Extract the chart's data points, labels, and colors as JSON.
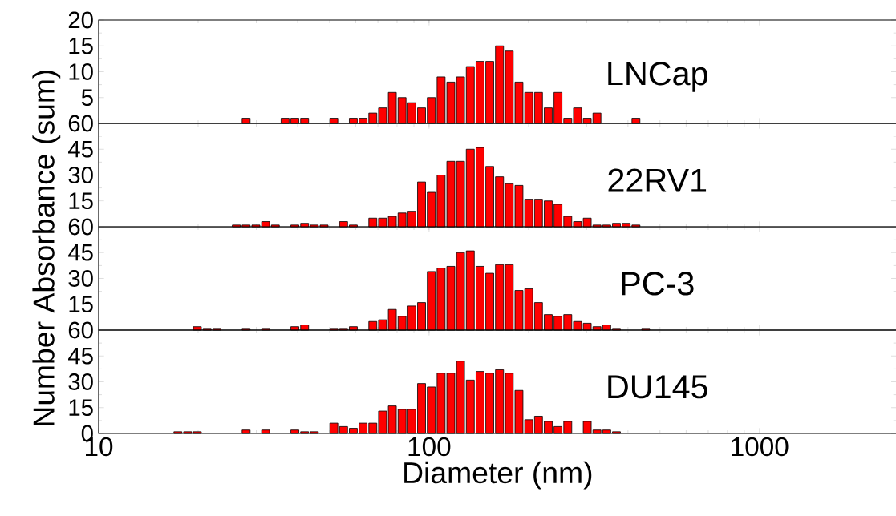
{
  "chart_data": [
    {
      "type": "histogram",
      "annotations": [
        "LNCap"
      ],
      "log": "x",
      "xlim": [
        10,
        2600
      ],
      "xticks": [
        10,
        100,
        1000
      ],
      "ylim": [
        0,
        20
      ],
      "yticks": [
        5,
        10,
        15,
        20
      ],
      "tick_labels": "y",
      "color": "#ff0000",
      "bins": [
        16.79,
        17.97,
        19.23,
        20.58,
        22.03,
        23.58,
        25.23,
        27.01,
        28.91,
        30.94,
        33.11,
        35.44,
        37.93,
        40.6,
        43.45,
        46.5,
        49.77,
        53.27,
        57.02,
        61.02,
        65.31,
        69.9,
        74.82,
        80.08,
        85.7,
        91.73,
        98.17,
        105.1,
        112.5,
        120.4,
        128.8,
        137.9,
        147.6,
        157.9,
        169.1,
        180.9,
        193.6,
        207.3,
        221.8,
        237.4,
        254.1,
        272.0,
        291.1,
        311.5,
        333.4,
        356.9,
        381.9,
        408.8,
        437.5,
        468.3
      ],
      "values": [
        0,
        0,
        0,
        0,
        0,
        0,
        0,
        1,
        0,
        0,
        0,
        1,
        1,
        1,
        0,
        0,
        1,
        0,
        1,
        1,
        2,
        3,
        6,
        5,
        4,
        3,
        5,
        9,
        8,
        9,
        11,
        12,
        12,
        15,
        14,
        8,
        6,
        6,
        3,
        6,
        1,
        3,
        1,
        2,
        0,
        0,
        0,
        1,
        0
      ]
    },
    {
      "type": "histogram",
      "annotations": [
        "22RV1"
      ],
      "ylabel": "Number Absorbance (sum)",
      "log": "x",
      "xlim": [
        10,
        2600
      ],
      "xticks": [
        10,
        100,
        1000
      ],
      "ylim": [
        0,
        60
      ],
      "yticks": [
        15,
        30,
        45,
        60
      ],
      "tick_labels": "y",
      "color": "#ff0000",
      "bins": [
        16.79,
        17.97,
        19.23,
        20.58,
        22.03,
        23.58,
        25.23,
        27.01,
        28.91,
        30.94,
        33.11,
        35.44,
        37.93,
        40.6,
        43.45,
        46.5,
        49.77,
        53.27,
        57.02,
        61.02,
        65.31,
        69.9,
        74.82,
        80.08,
        85.7,
        91.73,
        98.17,
        105.1,
        112.5,
        120.4,
        128.8,
        137.9,
        147.6,
        157.9,
        169.1,
        180.9,
        193.6,
        207.3,
        221.8,
        237.4,
        254.1,
        272.0,
        291.1,
        311.5,
        333.4,
        356.9,
        381.9,
        408.8,
        437.5,
        468.3
      ],
      "values": [
        0,
        0,
        0,
        0,
        0,
        0,
        1,
        1,
        1,
        3,
        1,
        0,
        1,
        2,
        1,
        1,
        0,
        3,
        1,
        0,
        5,
        5,
        6,
        8,
        9,
        26,
        20,
        30,
        38,
        38,
        45,
        46,
        35,
        29,
        25,
        24,
        16,
        16,
        15,
        13,
        6,
        3,
        5,
        1,
        1,
        2,
        2,
        1,
        0
      ]
    },
    {
      "type": "histogram",
      "annotations": [
        "PC-3"
      ],
      "log": "x",
      "xlim": [
        10,
        2600
      ],
      "xticks": [
        10,
        100,
        1000
      ],
      "ylim": [
        0,
        60
      ],
      "yticks": [
        15,
        30,
        45,
        60
      ],
      "tick_labels": "y",
      "color": "#ff0000",
      "bins": [
        16.79,
        17.97,
        19.23,
        20.58,
        22.03,
        23.58,
        25.23,
        27.01,
        28.91,
        30.94,
        33.11,
        35.44,
        37.93,
        40.6,
        43.45,
        46.5,
        49.77,
        53.27,
        57.02,
        61.02,
        65.31,
        69.9,
        74.82,
        80.08,
        85.7,
        91.73,
        98.17,
        105.1,
        112.5,
        120.4,
        128.8,
        137.9,
        147.6,
        157.9,
        169.1,
        180.9,
        193.6,
        207.3,
        221.8,
        237.4,
        254.1,
        272.0,
        291.1,
        311.5,
        333.4,
        356.9,
        381.9,
        408.8,
        437.5,
        468.3
      ],
      "values": [
        0,
        0,
        2,
        1,
        1,
        0,
        0,
        1,
        0,
        1,
        0,
        0,
        2,
        3,
        0,
        0,
        1,
        1,
        2,
        0,
        5,
        6,
        12,
        8,
        14,
        16,
        34,
        36,
        37,
        45,
        46,
        37,
        33,
        38,
        38,
        23,
        24,
        16,
        9,
        8,
        9,
        5,
        4,
        2,
        3,
        1,
        0,
        0,
        1
      ]
    },
    {
      "type": "histogram",
      "annotations": [
        "DU145"
      ],
      "xlabel": "Diameter (nm)",
      "log": "x",
      "xlim": [
        10,
        2600
      ],
      "xticks": [
        10,
        100,
        1000
      ],
      "ylim": [
        0,
        60
      ],
      "yticks": [
        0,
        15,
        30,
        45,
        60
      ],
      "color": "#ff0000",
      "bins": [
        16.79,
        17.97,
        19.23,
        20.58,
        22.03,
        23.58,
        25.23,
        27.01,
        28.91,
        30.94,
        33.11,
        35.44,
        37.93,
        40.6,
        43.45,
        46.5,
        49.77,
        53.27,
        57.02,
        61.02,
        65.31,
        69.9,
        74.82,
        80.08,
        85.7,
        91.73,
        98.17,
        105.1,
        112.5,
        120.4,
        128.8,
        137.9,
        147.6,
        157.9,
        169.1,
        180.9,
        193.6,
        207.3,
        221.8,
        237.4,
        254.1,
        272.0,
        291.1,
        311.5,
        333.4,
        356.9,
        381.9,
        408.8,
        437.5,
        468.3
      ],
      "values": [
        1,
        1,
        1,
        0,
        0,
        0,
        0,
        2,
        0,
        2,
        0,
        0,
        2,
        1,
        1,
        0,
        6,
        4,
        3,
        6,
        6,
        13,
        16,
        14,
        14,
        29,
        27,
        35,
        35,
        42,
        31,
        36,
        35,
        37,
        35,
        25,
        8,
        10,
        7,
        4,
        7,
        0,
        7,
        2,
        2,
        1,
        0,
        0,
        0
      ]
    }
  ]
}
